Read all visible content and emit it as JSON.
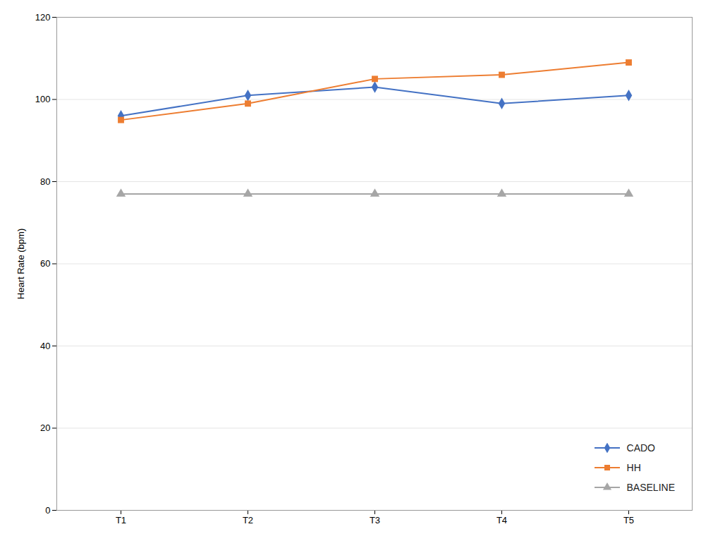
{
  "chart_data": {
    "type": "line",
    "categories": [
      "T1",
      "T2",
      "T3",
      "T4",
      "T5"
    ],
    "series": [
      {
        "name": "CADO",
        "color": "#4472C4",
        "marker": "diamond",
        "values": [
          96,
          101,
          103,
          99,
          101
        ]
      },
      {
        "name": "HH",
        "color": "#ED7D31",
        "marker": "square",
        "values": [
          95,
          99,
          105,
          106,
          109
        ]
      },
      {
        "name": "BASELINE",
        "color": "#A6A6A6",
        "marker": "triangle",
        "values": [
          77,
          77,
          77,
          77,
          77
        ]
      }
    ],
    "ylabel": "Heart Rate (bpm)",
    "ylim": [
      0,
      120
    ],
    "yticks": [
      0,
      20,
      40,
      60,
      80,
      100,
      120
    ],
    "grid": true,
    "legend": "lower right"
  }
}
